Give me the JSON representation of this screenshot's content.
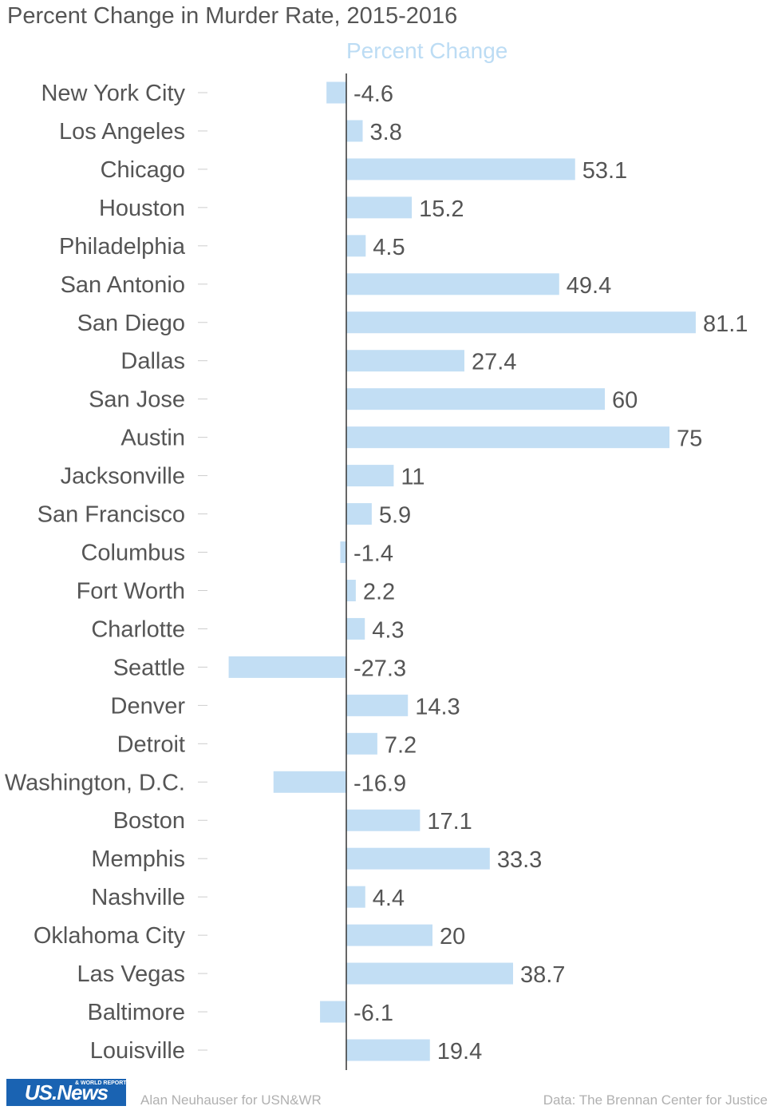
{
  "title": "Percent Change in Murder Rate, 2015-2016",
  "footer": {
    "logo_text": "US.News",
    "logo_subtext": "& WORLD REPORT",
    "credit": "Alan Neuhauser for USN&WR",
    "source": "Data: The Brennan Center for Justice"
  },
  "colors": {
    "bar": "#c2def4",
    "axis": "#333333",
    "legend": "#bcdcf4",
    "text": "#555555"
  },
  "chart_data": {
    "type": "bar",
    "orientation": "horizontal",
    "legend": "Percent Change",
    "legend_position": "top",
    "xlim": [
      -30,
      85
    ],
    "grid": false,
    "categories": [
      "New York City",
      "Los Angeles",
      "Chicago",
      "Houston",
      "Philadelphia",
      "San Antonio",
      "San Diego",
      "Dallas",
      "San Jose",
      "Austin",
      "Jacksonville",
      "San Francisco",
      "Columbus",
      "Fort Worth",
      "Charlotte",
      "Seattle",
      "Denver",
      "Detroit",
      "Washington, D.C.",
      "Boston",
      "Memphis",
      "Nashville",
      "Oklahoma City",
      "Las Vegas",
      "Baltimore",
      "Louisville"
    ],
    "series": [
      {
        "name": "Percent Change",
        "values": [
          -4.6,
          3.8,
          53.1,
          15.2,
          4.5,
          49.4,
          81.1,
          27.4,
          60,
          75,
          11,
          5.9,
          -1.4,
          2.2,
          4.3,
          -27.3,
          14.3,
          7.2,
          -16.9,
          17.1,
          33.3,
          4.4,
          20,
          38.7,
          -6.1,
          19.4
        ]
      }
    ]
  }
}
